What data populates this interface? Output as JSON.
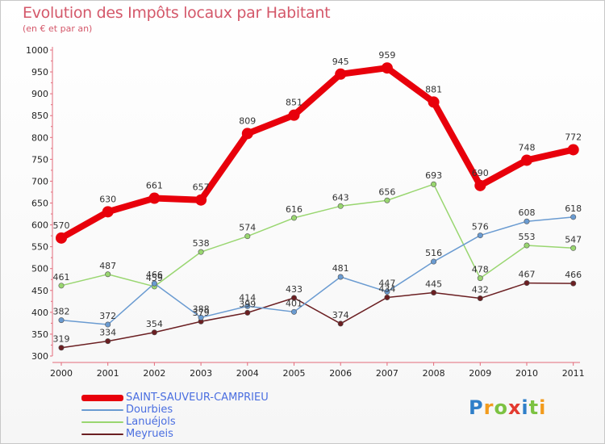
{
  "header": {
    "title": "Evolution des Impôts locaux par Habitant",
    "subtitle": "(en € et par an)"
  },
  "chart_data": {
    "type": "line",
    "categories": [
      "2000",
      "2001",
      "2002",
      "2003",
      "2004",
      "2005",
      "2006",
      "2007",
      "2008",
      "2009",
      "2010",
      "2011"
    ],
    "ylim": [
      300,
      1000
    ],
    "yticks": [
      300,
      350,
      400,
      450,
      500,
      550,
      600,
      650,
      700,
      750,
      800,
      850,
      900,
      950,
      1000
    ],
    "grid": false,
    "legend_position": "bottom-left",
    "series": [
      {
        "name": "SAINT-SAUVEUR-CAMPRIEU",
        "color": "#e8000b",
        "values": [
          570,
          630,
          661,
          657,
          809,
          851,
          945,
          959,
          881,
          690,
          748,
          772
        ]
      },
      {
        "name": "Dourbies",
        "color": "#6a9bd1",
        "values": [
          382,
          372,
          466,
          388,
          414,
          401,
          481,
          447,
          516,
          576,
          608,
          618
        ]
      },
      {
        "name": "Lanuéjols",
        "color": "#99d670",
        "values": [
          461,
          487,
          459,
          538,
          574,
          616,
          643,
          656,
          693,
          478,
          553,
          547
        ]
      },
      {
        "name": "Meyrueis",
        "color": "#6b1f22",
        "values": [
          319,
          334,
          354,
          379,
          399,
          433,
          374,
          434,
          445,
          432,
          467,
          466
        ]
      }
    ]
  },
  "logo": {
    "letters": [
      "P",
      "r",
      "o",
      "x",
      "i",
      "t",
      "i"
    ],
    "colors": [
      "#2f7fc9",
      "#f29b1d",
      "#7cc242",
      "#e33a2f",
      "#2f7fc9",
      "#7cc242",
      "#f29b1d"
    ]
  }
}
